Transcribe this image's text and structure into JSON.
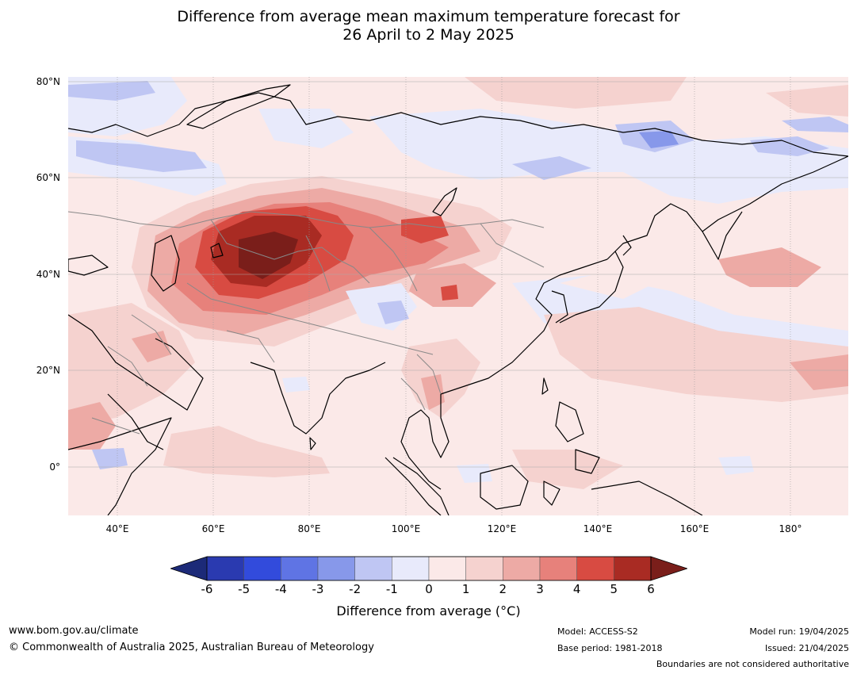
{
  "title": {
    "line1": "Difference from average mean maximum temperature forecast for",
    "line2": "26 April to 2 May 2025"
  },
  "map": {
    "lat_labels": [
      "80°N",
      "60°N",
      "40°N",
      "20°N",
      "0°"
    ],
    "lon_labels": [
      "40°E",
      "60°E",
      "80°E",
      "100°E",
      "120°E",
      "140°E",
      "160°E",
      "180°"
    ]
  },
  "colorbar": {
    "ticks": [
      "-6",
      "-5",
      "-4",
      "-3",
      "-2",
      "-1",
      "0",
      "1",
      "2",
      "3",
      "4",
      "5",
      "6"
    ],
    "colors": [
      "#1c2a78",
      "#2a3ab0",
      "#324bdc",
      "#5f74e4",
      "#8798ea",
      "#bfc6f3",
      "#e8eafb",
      "#fbe9e8",
      "#f5d2cf",
      "#edaaa5",
      "#e7817b",
      "#d84b42",
      "#a92b23",
      "#7a1e1a"
    ],
    "label": "Difference from average (°C)"
  },
  "footer": {
    "url": "www.bom.gov.au/climate",
    "copyright": "© Commonwealth of Australia 2025, Australian Bureau of Meteorology",
    "model": "Model: ACCESS-S2",
    "base_period": "Base period: 1981-2018",
    "model_run": "Model run: 19/04/2025",
    "issued": "Issued: 21/04/2025",
    "disclaimer": "Boundaries are not considered authoritative"
  }
}
